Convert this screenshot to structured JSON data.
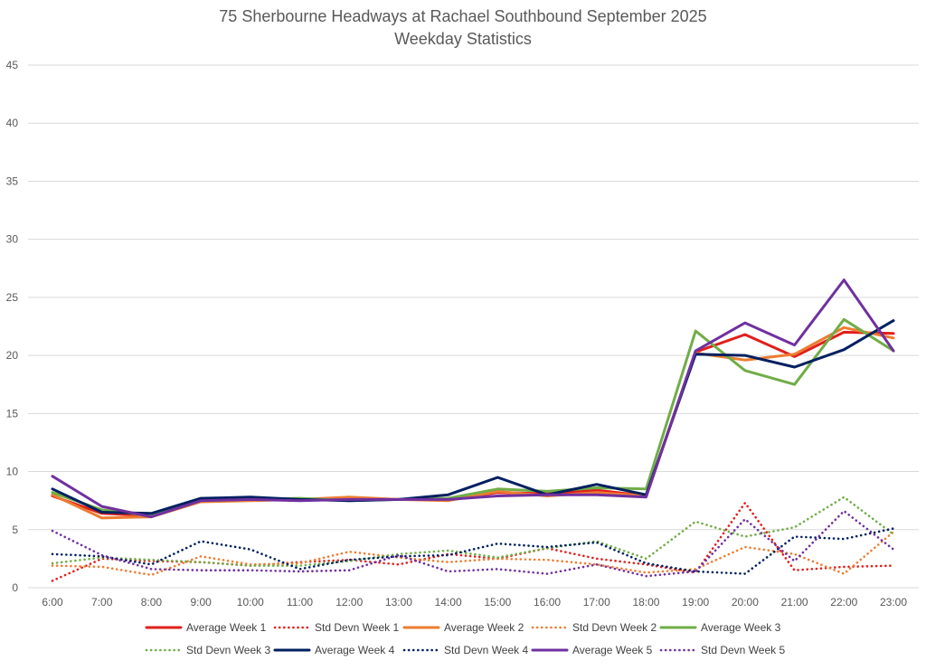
{
  "chart_data": {
    "type": "line",
    "title": "75 Sherbourne Headways at Rachael Southbound September 2025",
    "subtitle": "Weekday Statistics",
    "xlabel": "",
    "ylabel": "",
    "ylim": [
      0,
      45
    ],
    "yticks": [
      0,
      5,
      10,
      15,
      20,
      25,
      30,
      35,
      40,
      45
    ],
    "grid": true,
    "legend_position": "bottom",
    "categories": [
      "6:00",
      "7:00",
      "8:00",
      "9:00",
      "10:00",
      "11:00",
      "12:00",
      "13:00",
      "14:00",
      "15:00",
      "16:00",
      "17:00",
      "18:00",
      "19:00",
      "20:00",
      "21:00",
      "22:00",
      "23:00"
    ],
    "series": [
      {
        "name": "Average Week 1",
        "style": "solid",
        "color": "#e0201b",
        "values": [
          7.9,
          6.4,
          6.2,
          7.5,
          7.6,
          7.6,
          7.6,
          7.6,
          7.6,
          8.2,
          8.1,
          8.4,
          7.9,
          20.3,
          21.8,
          19.9,
          22.0,
          21.9
        ]
      },
      {
        "name": "Std Devn Week 1",
        "style": "dotted",
        "color": "#e0201b",
        "values": [
          0.6,
          2.5,
          2.3,
          2.2,
          1.9,
          2.2,
          2.4,
          2.0,
          2.9,
          2.5,
          3.4,
          2.5,
          2.0,
          1.3,
          7.3,
          1.5,
          1.8,
          1.9
        ]
      },
      {
        "name": "Average Week 2",
        "style": "solid",
        "color": "#ed7d31",
        "values": [
          8.0,
          6.0,
          6.1,
          7.4,
          7.5,
          7.6,
          7.8,
          7.6,
          7.5,
          8.3,
          7.9,
          8.2,
          7.9,
          20.2,
          19.6,
          20.1,
          22.4,
          21.5
        ]
      },
      {
        "name": "Std Devn Week 2",
        "style": "dotted",
        "color": "#ed7d31",
        "values": [
          1.9,
          1.8,
          1.1,
          2.7,
          2.0,
          2.1,
          3.1,
          2.6,
          2.2,
          2.5,
          2.4,
          2.0,
          1.3,
          1.6,
          3.5,
          2.9,
          1.2,
          4.8
        ]
      },
      {
        "name": "Average Week 3",
        "style": "solid",
        "color": "#70ad47",
        "values": [
          8.2,
          6.7,
          6.2,
          7.5,
          7.6,
          7.7,
          7.5,
          7.6,
          7.7,
          8.5,
          8.3,
          8.6,
          8.5,
          22.1,
          18.7,
          17.5,
          23.1,
          20.4
        ]
      },
      {
        "name": "Std Devn Week 3",
        "style": "dotted",
        "color": "#70ad47",
        "values": [
          2.1,
          2.6,
          2.4,
          2.2,
          1.9,
          1.9,
          2.3,
          2.9,
          3.2,
          2.6,
          3.4,
          4.0,
          2.5,
          5.7,
          4.4,
          5.2,
          7.8,
          4.6
        ]
      },
      {
        "name": "Average Week 4",
        "style": "solid",
        "color": "#002060",
        "values": [
          8.5,
          6.5,
          6.4,
          7.7,
          7.8,
          7.6,
          7.5,
          7.6,
          8.0,
          9.5,
          8.0,
          8.9,
          8.0,
          20.1,
          20.0,
          19.0,
          20.5,
          23.0
        ]
      },
      {
        "name": "Std Devn Week 4",
        "style": "dotted",
        "color": "#002060",
        "values": [
          2.9,
          2.7,
          2.0,
          4.0,
          3.3,
          1.6,
          2.4,
          2.7,
          2.8,
          3.8,
          3.5,
          3.9,
          2.1,
          1.4,
          1.2,
          4.4,
          4.2,
          5.1
        ]
      },
      {
        "name": "Average Week 5",
        "style": "solid",
        "color": "#7030a0",
        "values": [
          9.6,
          7.0,
          6.1,
          7.5,
          7.6,
          7.5,
          7.6,
          7.6,
          7.6,
          7.9,
          8.0,
          8.0,
          7.8,
          20.4,
          22.8,
          20.9,
          26.5,
          20.4
        ]
      },
      {
        "name": "Std Devn Week 5",
        "style": "dotted",
        "color": "#7030a0",
        "values": [
          4.9,
          2.8,
          1.6,
          1.5,
          1.5,
          1.4,
          1.5,
          2.8,
          1.4,
          1.6,
          1.2,
          2.0,
          1.0,
          1.4,
          5.9,
          2.3,
          6.6,
          3.3
        ]
      }
    ]
  }
}
